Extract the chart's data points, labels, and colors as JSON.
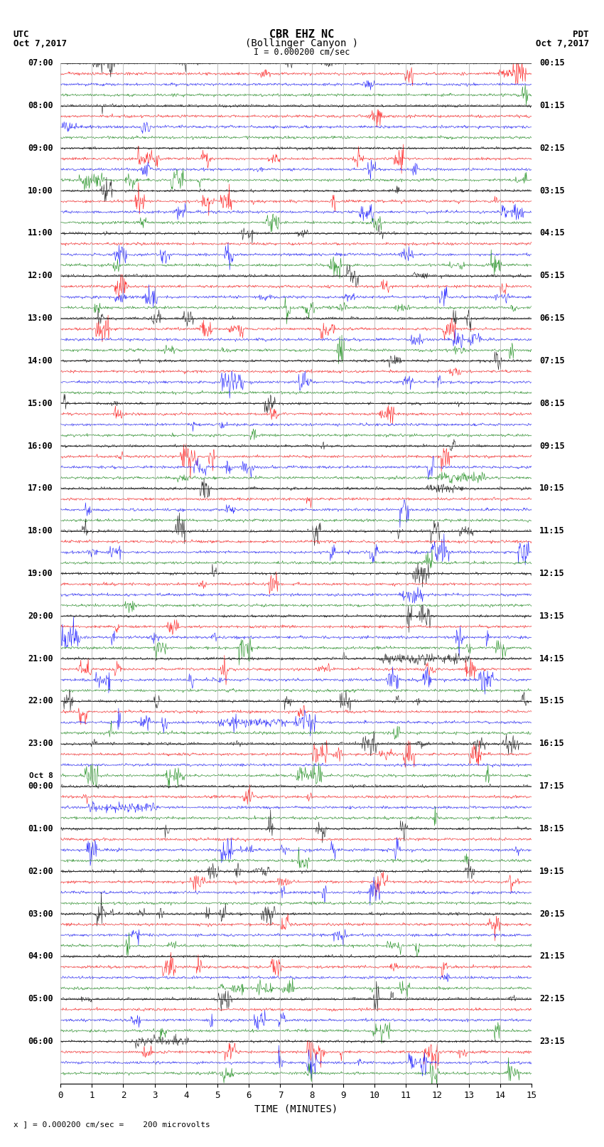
{
  "title_line1": "CBR EHZ NC",
  "title_line2": "(Bollinger Canyon )",
  "title_line3": "I = 0.000200 cm/sec",
  "left_header_line1": "UTC",
  "left_header_line2": "Oct 7,2017",
  "right_header_line1": "PDT",
  "right_header_line2": "Oct 7,2017",
  "xlabel": "TIME (MINUTES)",
  "footer": "x ] = 0.000200 cm/sec =    200 microvolts",
  "xlim": [
    0,
    15
  ],
  "xticks": [
    0,
    1,
    2,
    3,
    4,
    5,
    6,
    7,
    8,
    9,
    10,
    11,
    12,
    13,
    14,
    15
  ],
  "trace_colors": [
    "black",
    "red",
    "blue",
    "green"
  ],
  "total_rows": 96,
  "background_color": "white",
  "grid_color": "#aaaaaa",
  "major_label_hours": [
    7,
    8,
    9,
    10,
    11,
    12,
    13,
    14,
    15,
    16,
    17,
    18,
    19,
    20,
    21,
    22,
    23,
    0,
    1,
    2,
    3,
    4,
    5,
    6
  ],
  "pdt_labels": [
    "00:15",
    "01:15",
    "02:15",
    "03:15",
    "04:15",
    "05:15",
    "06:15",
    "07:15",
    "08:15",
    "09:15",
    "10:15",
    "11:15",
    "12:15",
    "13:15",
    "14:15",
    "15:15",
    "16:15",
    "17:15",
    "18:15",
    "19:15",
    "20:15",
    "21:15",
    "22:15",
    "23:15"
  ],
  "oct8_row": 68
}
